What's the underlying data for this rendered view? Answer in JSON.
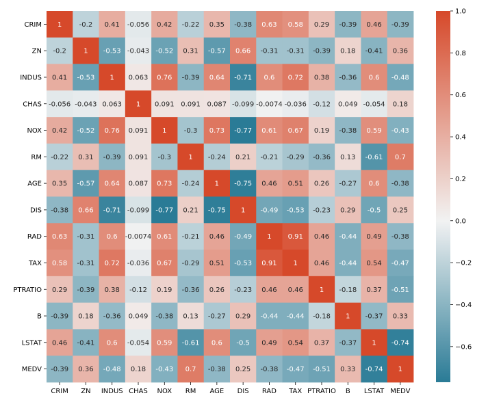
{
  "chart_data": {
    "type": "heatmap",
    "title": "",
    "xlabel": "",
    "ylabel": "",
    "labels": [
      "CRIM",
      "ZN",
      "INDUS",
      "CHAS",
      "NOX",
      "RM",
      "AGE",
      "DIS",
      "RAD",
      "TAX",
      "PTRATIO",
      "B",
      "LSTAT",
      "MEDV"
    ],
    "matrix": [
      [
        "1",
        "-0.2",
        "0.41",
        "-0.056",
        "0.42",
        "-0.22",
        "0.35",
        "-0.38",
        "0.63",
        "0.58",
        "0.29",
        "-0.39",
        "0.46",
        "-0.39"
      ],
      [
        "-0.2",
        "1",
        "-0.53",
        "-0.043",
        "-0.52",
        "0.31",
        "-0.57",
        "0.66",
        "-0.31",
        "-0.31",
        "-0.39",
        "0.18",
        "-0.41",
        "0.36"
      ],
      [
        "0.41",
        "-0.53",
        "1",
        "0.063",
        "0.76",
        "-0.39",
        "0.64",
        "-0.71",
        "0.6",
        "0.72",
        "0.38",
        "-0.36",
        "0.6",
        "-0.48"
      ],
      [
        "-0.056",
        "-0.043",
        "0.063",
        "1",
        "0.091",
        "0.091",
        "0.087",
        "-0.099",
        "-0.0074",
        "-0.036",
        "-0.12",
        "0.049",
        "-0.054",
        "0.18"
      ],
      [
        "0.42",
        "-0.52",
        "0.76",
        "0.091",
        "1",
        "-0.3",
        "0.73",
        "-0.77",
        "0.61",
        "0.67",
        "0.19",
        "-0.38",
        "0.59",
        "-0.43"
      ],
      [
        "-0.22",
        "0.31",
        "-0.39",
        "0.091",
        "-0.3",
        "1",
        "-0.24",
        "0.21",
        "-0.21",
        "-0.29",
        "-0.36",
        "0.13",
        "-0.61",
        "0.7"
      ],
      [
        "0.35",
        "-0.57",
        "0.64",
        "0.087",
        "0.73",
        "-0.24",
        "1",
        "-0.75",
        "0.46",
        "0.51",
        "0.26",
        "-0.27",
        "0.6",
        "-0.38"
      ],
      [
        "-0.38",
        "0.66",
        "-0.71",
        "-0.099",
        "-0.77",
        "0.21",
        "-0.75",
        "1",
        "-0.49",
        "-0.53",
        "-0.23",
        "0.29",
        "-0.5",
        "0.25"
      ],
      [
        "0.63",
        "-0.31",
        "0.6",
        "-0.0074",
        "0.61",
        "-0.21",
        "0.46",
        "-0.49",
        "1",
        "0.91",
        "0.46",
        "-0.44",
        "0.49",
        "-0.38"
      ],
      [
        "0.58",
        "-0.31",
        "0.72",
        "-0.036",
        "0.67",
        "-0.29",
        "0.51",
        "-0.53",
        "0.91",
        "1",
        "0.46",
        "-0.44",
        "0.54",
        "-0.47"
      ],
      [
        "0.29",
        "-0.39",
        "0.38",
        "-0.12",
        "0.19",
        "-0.36",
        "0.26",
        "-0.23",
        "0.46",
        "0.46",
        "1",
        "-0.18",
        "0.37",
        "-0.51"
      ],
      [
        "-0.39",
        "0.18",
        "-0.36",
        "0.049",
        "-0.38",
        "0.13",
        "-0.27",
        "0.29",
        "-0.44",
        "-0.44",
        "-0.18",
        "1",
        "-0.37",
        "0.33"
      ],
      [
        "0.46",
        "-0.41",
        "0.6",
        "-0.054",
        "0.59",
        "-0.61",
        "0.6",
        "-0.5",
        "0.49",
        "0.54",
        "0.37",
        "-0.37",
        "1",
        "-0.74"
      ],
      [
        "-0.39",
        "0.36",
        "-0.48",
        "0.18",
        "-0.43",
        "0.7",
        "-0.38",
        "0.25",
        "-0.38",
        "-0.47",
        "-0.51",
        "0.33",
        "-0.74",
        "1"
      ]
    ],
    "colorbar": {
      "min": -0.77,
      "max": 1.0,
      "center": 0,
      "ticks": [
        "1.0",
        "0.8",
        "0.6",
        "0.4",
        "0.2",
        "0.0",
        "−0.2",
        "−0.4",
        "−0.6"
      ],
      "tick_values": [
        1.0,
        0.8,
        0.6,
        0.4,
        0.2,
        0.0,
        -0.2,
        -0.4,
        -0.6
      ]
    },
    "colors": {
      "negative": "#2a7b96",
      "center": "#f2f2f2",
      "positive": "#d6492a"
    },
    "grid": false
  }
}
